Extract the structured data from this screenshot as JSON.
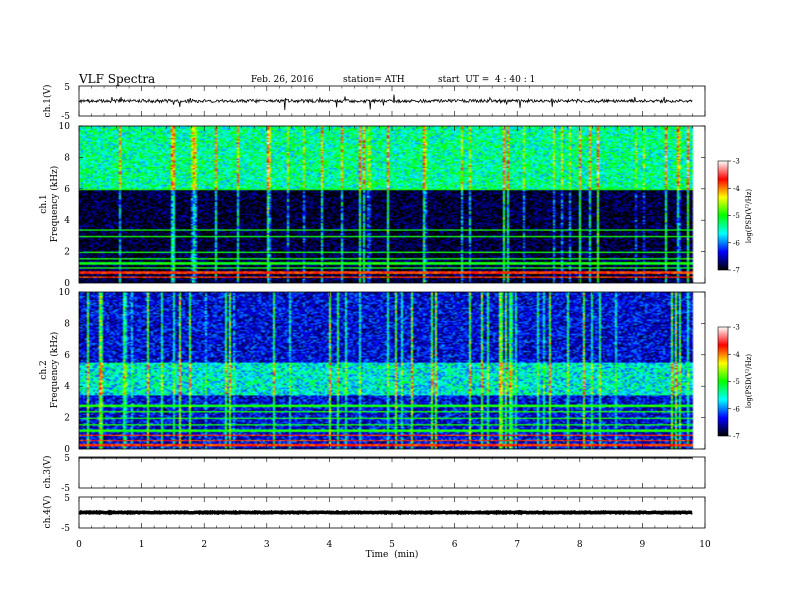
{
  "header": {
    "title": "VLF Spectra",
    "date": "Feb. 26, 2016",
    "station": "station= ATH",
    "start": "start  UT =  4 : 40 : 1"
  },
  "chart_data": [
    {
      "type": "line",
      "panel": "ch1-waveform",
      "ylabel": "ch.1(V)",
      "ylim": [
        -5,
        5
      ],
      "yticks": [
        "5",
        "-5"
      ],
      "xlim": [
        0,
        10
      ],
      "baseline_v": 0,
      "color": "#000000"
    },
    {
      "type": "heatmap",
      "panel": "ch1-spectrogram",
      "ylabel": "ch.1\nFrequency (kHz)",
      "ylim": [
        0,
        10
      ],
      "yticks": [
        "10",
        "8",
        "6",
        "4",
        "2",
        "0"
      ],
      "xlim": [
        0,
        10
      ],
      "data_end_min": 9.8,
      "noise_floor_log": -6.9,
      "elevated_band_khz": [
        6.0,
        10.0
      ],
      "elevated_band_log": -5.4,
      "lines_khz": [
        0.4,
        0.7,
        1.0,
        1.3,
        1.6,
        2.0,
        3.0,
        3.4,
        6.0
      ]
    },
    {
      "type": "heatmap",
      "panel": "ch2-spectrogram",
      "ylabel": "ch.2\nFrequency (kHz)",
      "ylim": [
        0,
        10
      ],
      "yticks": [
        "10",
        "8",
        "6",
        "4",
        "2",
        "0"
      ],
      "xlim": [
        0,
        10
      ],
      "data_end_min": 9.8,
      "noise_floor_log": -6.4,
      "elevated_band_khz": [
        3.5,
        5.5
      ],
      "elevated_band_log": -5.6,
      "lines_khz": [
        0.3,
        0.6,
        0.9,
        1.2,
        1.6,
        2.0,
        2.4,
        2.8
      ]
    },
    {
      "type": "line",
      "panel": "ch3-waveform",
      "ylabel": "ch.3(V)",
      "ylim": [
        -5,
        5
      ],
      "yticks": [
        "5",
        "-5"
      ],
      "xlim": [
        0,
        10
      ],
      "baseline_v": 5,
      "color": "#000000"
    },
    {
      "type": "line",
      "panel": "ch4-waveform",
      "ylabel": "ch.4(V)",
      "ylim": [
        -5,
        5
      ],
      "yticks": [
        "5",
        "-5"
      ],
      "xlim": [
        0,
        10
      ],
      "baseline_v": 0,
      "color": "#000000"
    }
  ],
  "xaxis": {
    "label": "Time  (min)",
    "ticks": [
      "0",
      "1",
      "2",
      "3",
      "4",
      "5",
      "6",
      "7",
      "8",
      "9",
      "10"
    ]
  },
  "colorbars": [
    {
      "label": "log(PSD(V²/Hz)",
      "range": [
        -7,
        -3
      ],
      "ticks": [
        "-3",
        "-4",
        "-5",
        "-6",
        "-7"
      ],
      "stops": [
        "#000000",
        "#0000ff",
        "#00ffff",
        "#00ff00",
        "#ffff00",
        "#ff0000",
        "#ffffff"
      ]
    },
    {
      "label": "log(PSD(V²/Hz)",
      "range": [
        -7,
        -3
      ],
      "ticks": [
        "-3",
        "-4",
        "-5",
        "-6",
        "-7"
      ],
      "stops": [
        "#000000",
        "#0000ff",
        "#00ffff",
        "#00ff00",
        "#ffff00",
        "#ff0000",
        "#ffffff"
      ]
    }
  ]
}
